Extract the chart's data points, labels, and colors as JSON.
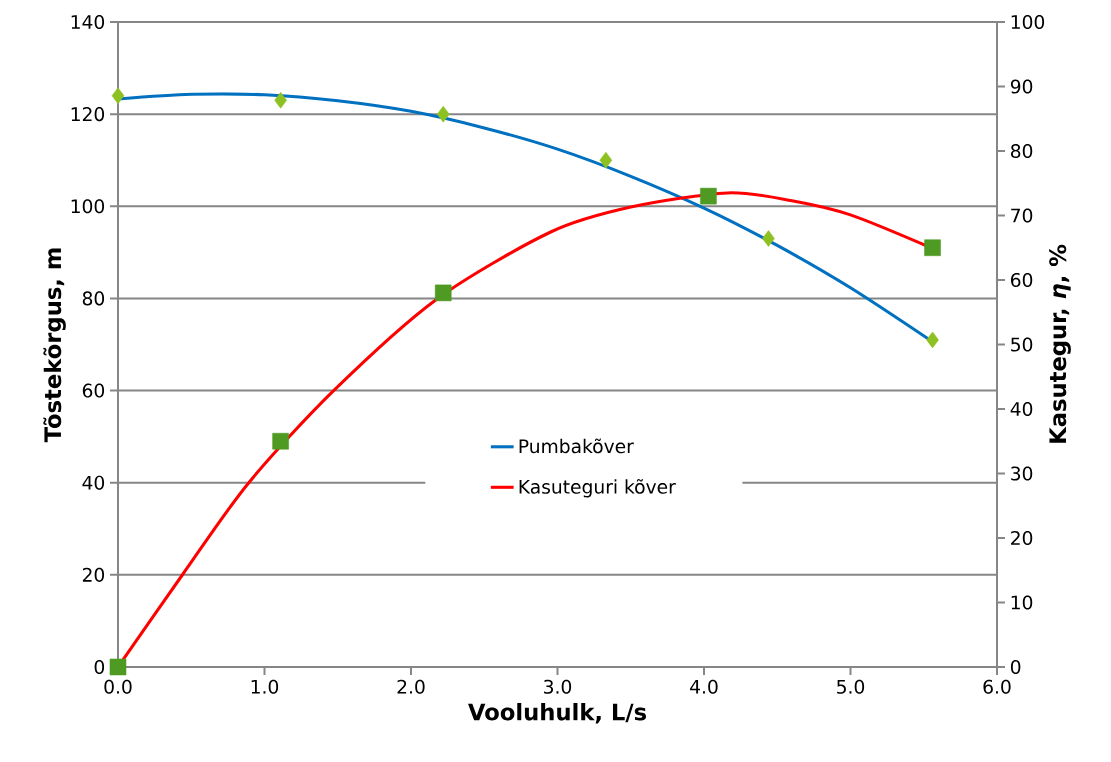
{
  "chart_data": {
    "type": "scatter",
    "xlabel": "Vooluhulk, L/s",
    "ylabel": "Tõstekõrgus, m",
    "y2label": "Kasutegur, *η*, %",
    "xlim": [
      0,
      6
    ],
    "xticks": [
      {
        "value": 0,
        "label": "0.0"
      },
      {
        "value": 1,
        "label": "1.0"
      },
      {
        "value": 2,
        "label": "2.0"
      },
      {
        "value": 3,
        "label": "3.0"
      },
      {
        "value": 4,
        "label": "4.0"
      },
      {
        "value": 5,
        "label": "5.0"
      },
      {
        "value": 6,
        "label": "6.0"
      }
    ],
    "ylim": [
      0,
      140
    ],
    "yticks": [
      0,
      20,
      40,
      60,
      80,
      100,
      120,
      140
    ],
    "y2lim": [
      0,
      100
    ],
    "y2ticks": [
      0,
      10,
      20,
      30,
      40,
      50,
      60,
      70,
      80,
      90,
      100
    ],
    "grid": "y",
    "legend": "center",
    "series": [
      {
        "color": "#8dc021",
        "marker": "diamond",
        "x": [
          0,
          1.11,
          2.22,
          3.33,
          4.44,
          5.56
        ],
        "values": [
          124,
          123,
          120,
          110,
          93,
          71
        ]
      },
      {
        "color": "#4e9a22",
        "marker": "square",
        "axis": "y2",
        "x": [
          0,
          1.11,
          2.22,
          4.03,
          5.56
        ],
        "values": [
          0,
          35,
          58,
          73,
          65
        ]
      },
      {
        "type": "line",
        "name": "Pumbakõver",
        "color": "#0070c0",
        "x": [
          0,
          0.5,
          1,
          1.5,
          2,
          2.5,
          3,
          3.5,
          4,
          4.5,
          5,
          5.55
        ],
        "values": [
          123.3,
          124.3,
          124.2,
          122.9,
          120.6,
          117,
          112.4,
          106.5,
          99.6,
          91.5,
          82.3,
          70.8
        ]
      },
      {
        "type": "line",
        "name": "Kasuteguri kõver",
        "color": "#ff0000",
        "axis": "y2",
        "x": [
          0,
          0.44,
          0.89,
          1.47,
          2.18,
          2.95,
          3.5,
          4.16,
          4.6,
          5,
          5.55
        ],
        "values": [
          0,
          14.3,
          28.5,
          42.8,
          57.1,
          67.4,
          71.3,
          73.5,
          72.3,
          70.1,
          65
        ]
      }
    ]
  }
}
